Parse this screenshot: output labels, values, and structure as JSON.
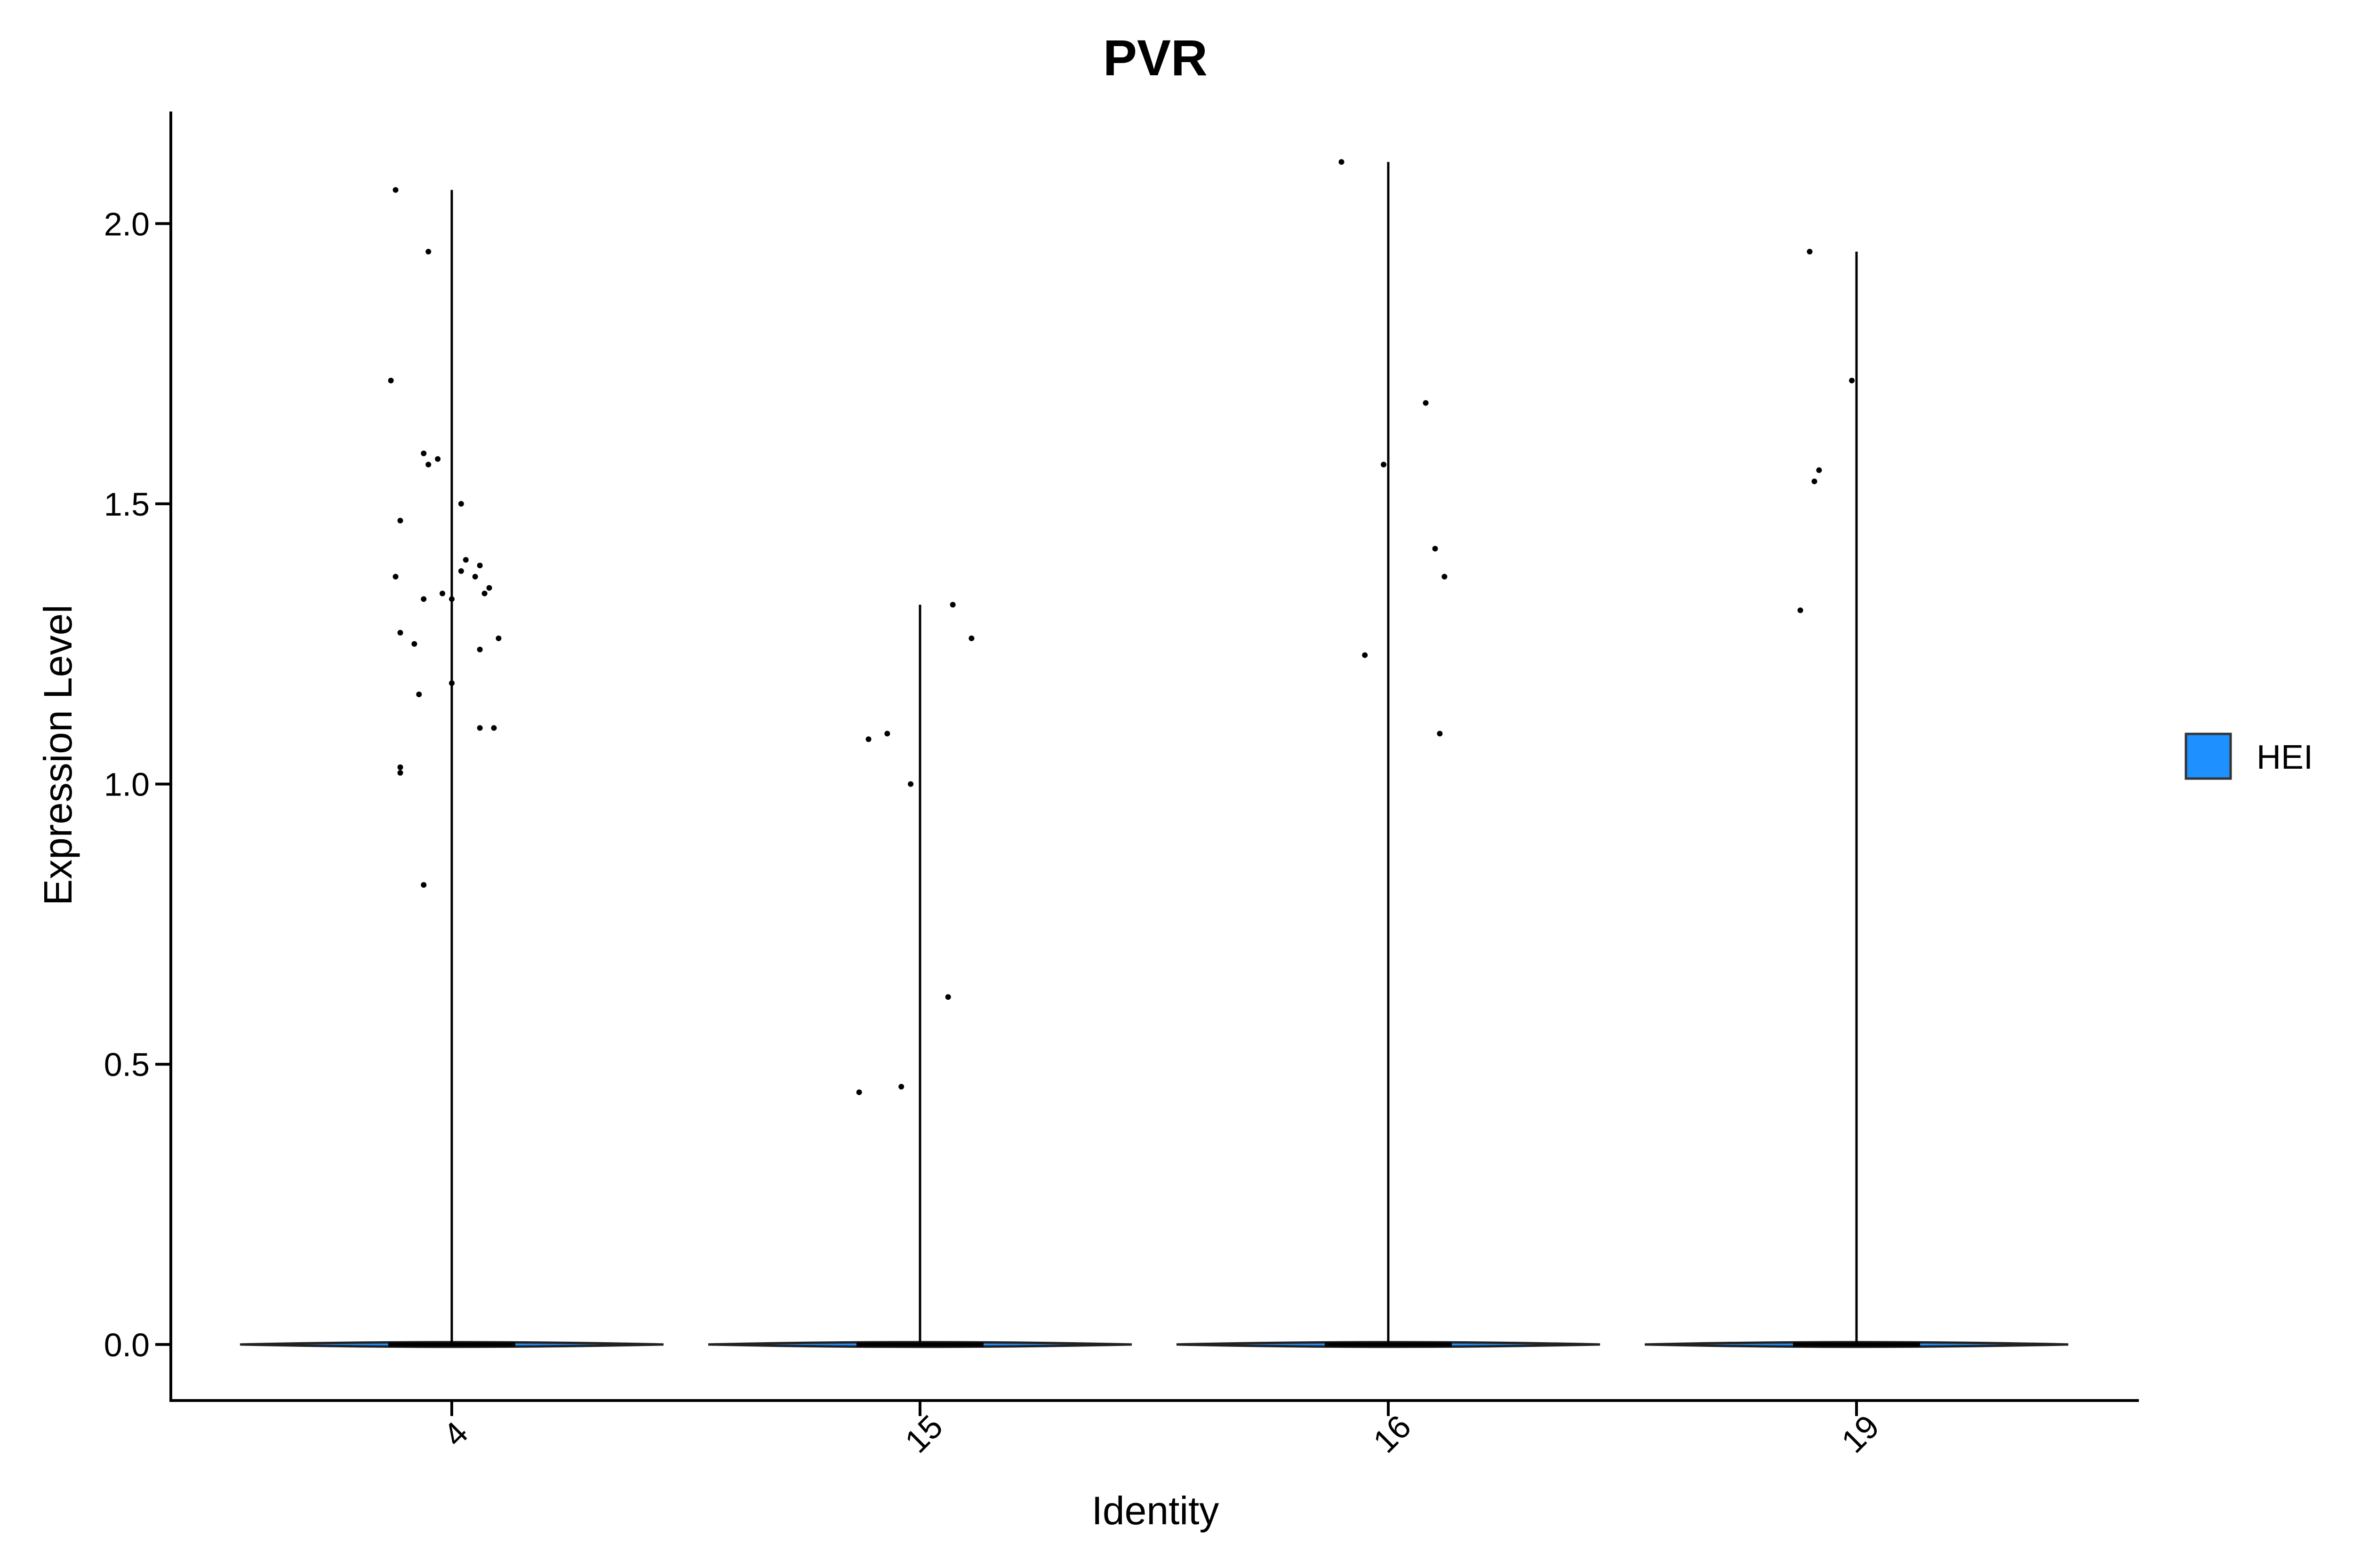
{
  "chart_data": {
    "type": "violin",
    "title": "PVR",
    "xlabel": "Identity",
    "ylabel": "Expression Level",
    "categories": [
      "4",
      "15",
      "16",
      "19"
    ],
    "ylim": [
      -0.1,
      2.2
    ],
    "yticks": [
      0.0,
      0.5,
      1.0,
      1.5,
      2.0
    ],
    "ytick_labels": [
      "0.0",
      "0.5",
      "1.0",
      "1.5",
      "2.0"
    ],
    "grid": false,
    "legend": {
      "position": "right",
      "entries": [
        {
          "label": "HEI",
          "color": "#1E90FF"
        }
      ]
    },
    "series": [
      {
        "category": "4",
        "max": 2.06,
        "points": [
          {
            "x": -0.12,
            "y": 2.06
          },
          {
            "x": -0.05,
            "y": 1.95
          },
          {
            "x": -0.13,
            "y": 1.72
          },
          {
            "x": -0.06,
            "y": 1.59
          },
          {
            "x": -0.05,
            "y": 1.57
          },
          {
            "x": -0.03,
            "y": 1.58
          },
          {
            "x": 0.02,
            "y": 1.5
          },
          {
            "x": -0.11,
            "y": 1.47
          },
          {
            "x": 0.03,
            "y": 1.4
          },
          {
            "x": 0.06,
            "y": 1.39
          },
          {
            "x": 0.02,
            "y": 1.38
          },
          {
            "x": 0.05,
            "y": 1.37
          },
          {
            "x": -0.12,
            "y": 1.37
          },
          {
            "x": 0.08,
            "y": 1.35
          },
          {
            "x": 0.07,
            "y": 1.34
          },
          {
            "x": -0.02,
            "y": 1.34
          },
          {
            "x": -0.06,
            "y": 1.33
          },
          {
            "x": 0.0,
            "y": 1.33
          },
          {
            "x": -0.11,
            "y": 1.27
          },
          {
            "x": 0.1,
            "y": 1.26
          },
          {
            "x": -0.08,
            "y": 1.25
          },
          {
            "x": 0.06,
            "y": 1.24
          },
          {
            "x": 0.0,
            "y": 1.18
          },
          {
            "x": -0.07,
            "y": 1.16
          },
          {
            "x": 0.06,
            "y": 1.1
          },
          {
            "x": 0.09,
            "y": 1.1
          },
          {
            "x": -0.11,
            "y": 1.03
          },
          {
            "x": -0.11,
            "y": 1.02
          },
          {
            "x": -0.06,
            "y": 0.82
          }
        ]
      },
      {
        "category": "15",
        "max": 1.32,
        "points": [
          {
            "x": 0.07,
            "y": 1.32
          },
          {
            "x": 0.11,
            "y": 1.26
          },
          {
            "x": -0.07,
            "y": 1.09
          },
          {
            "x": -0.11,
            "y": 1.08
          },
          {
            "x": -0.02,
            "y": 1.0
          },
          {
            "x": 0.06,
            "y": 0.62
          },
          {
            "x": -0.04,
            "y": 0.46
          },
          {
            "x": -0.13,
            "y": 0.45
          }
        ]
      },
      {
        "category": "16",
        "max": 2.11,
        "points": [
          {
            "x": -0.1,
            "y": 2.11
          },
          {
            "x": 0.08,
            "y": 1.68
          },
          {
            "x": -0.01,
            "y": 1.57
          },
          {
            "x": 0.1,
            "y": 1.42
          },
          {
            "x": 0.12,
            "y": 1.37
          },
          {
            "x": -0.05,
            "y": 1.23
          },
          {
            "x": 0.11,
            "y": 1.09
          }
        ]
      },
      {
        "category": "19",
        "max": 1.95,
        "points": [
          {
            "x": -0.1,
            "y": 1.95
          },
          {
            "x": -0.01,
            "y": 1.72
          },
          {
            "x": -0.08,
            "y": 1.56
          },
          {
            "x": -0.09,
            "y": 1.54
          },
          {
            "x": -0.12,
            "y": 1.31
          }
        ]
      }
    ]
  }
}
